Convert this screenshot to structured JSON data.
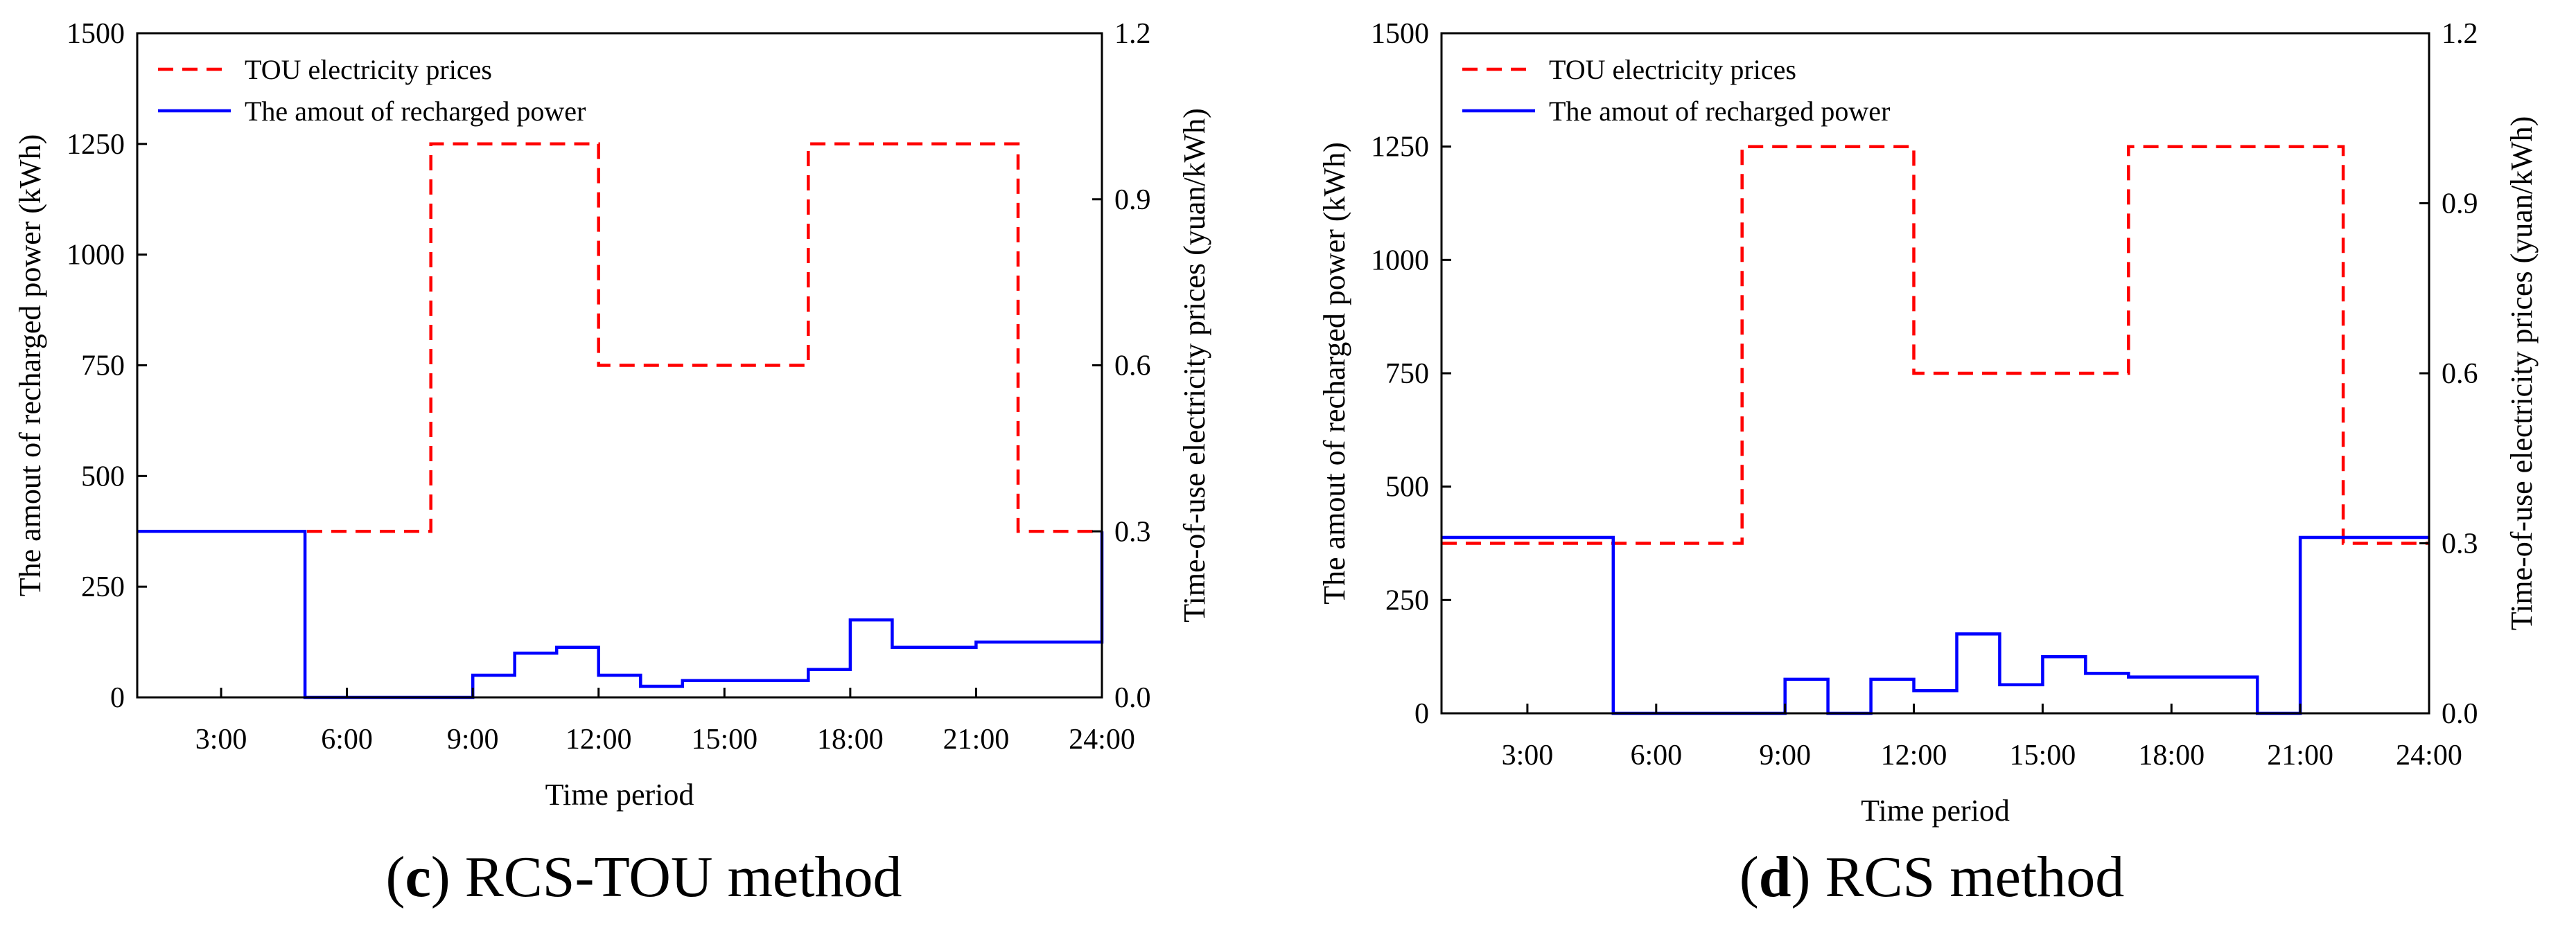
{
  "colors": {
    "price": "#ff0000",
    "power": "#0000ff",
    "axis": "#000000"
  },
  "captions": [
    {
      "letter": "c",
      "text": ") RCS-TOU method"
    },
    {
      "letter": "d",
      "text": ") RCS method"
    }
  ],
  "chart_data": [
    {
      "type": "line",
      "panel": "c",
      "xlabel": "Time period",
      "ylabel_left": "The amout of recharged power (kWh)",
      "ylabel_right": "Time-of-use electricity prices (yuan/kWh)",
      "xlim": [
        1,
        24
      ],
      "ylim_left": [
        0,
        1500
      ],
      "ylim_right": [
        0,
        1.2
      ],
      "x_ticks": [
        3,
        6,
        9,
        12,
        15,
        18,
        21,
        24
      ],
      "x_tick_labels": [
        "3:00",
        "6:00",
        "9:00",
        "12:00",
        "15:00",
        "18:00",
        "21:00",
        "24:00"
      ],
      "y_left_ticks": [
        "0",
        "250",
        "500",
        "750",
        "1000",
        "1250",
        "1500"
      ],
      "y_right_ticks": [
        "0.0",
        "0.3",
        "0.6",
        "0.9",
        "1.2"
      ],
      "legend_position": "top-left",
      "series": [
        {
          "name": "TOU electricity prices",
          "axis": "right",
          "style": "dashed-step",
          "color": "#ff0000",
          "x": [
            1,
            8,
            12,
            17,
            22,
            24
          ],
          "y": [
            0.3,
            1.0,
            0.6,
            1.0,
            0.3,
            0.3
          ]
        },
        {
          "name": "The amout of recharged power",
          "axis": "left",
          "style": "solid-step",
          "color": "#0000ff",
          "x": [
            1,
            5,
            9,
            10,
            11,
            12,
            13,
            14,
            16,
            17,
            18,
            19,
            21,
            24
          ],
          "y": [
            375,
            0,
            50,
            100,
            113,
            50,
            25,
            38,
            38,
            63,
            175,
            113,
            125,
            375
          ]
        }
      ]
    },
    {
      "type": "line",
      "panel": "d",
      "xlabel": "Time period",
      "ylabel_left": "The amout of recharged power (kWh)",
      "ylabel_right": "Time-of-use electricity prices (yuan/kWh)",
      "xlim": [
        1,
        24
      ],
      "ylim_left": [
        0,
        1500
      ],
      "ylim_right": [
        0,
        1.2
      ],
      "x_ticks": [
        3,
        6,
        9,
        12,
        15,
        18,
        21,
        24
      ],
      "x_tick_labels": [
        "3:00",
        "6:00",
        "9:00",
        "12:00",
        "15:00",
        "18:00",
        "21:00",
        "24:00"
      ],
      "y_left_ticks": [
        "0",
        "250",
        "500",
        "750",
        "1000",
        "1250",
        "1500"
      ],
      "y_right_ticks": [
        "0.0",
        "0.3",
        "0.6",
        "0.9",
        "1.2"
      ],
      "legend_position": "top-left",
      "series": [
        {
          "name": "TOU electricity prices",
          "axis": "right",
          "style": "dashed-step",
          "color": "#ff0000",
          "x": [
            1,
            8,
            12,
            17,
            22,
            24
          ],
          "y": [
            0.3,
            1.0,
            0.6,
            1.0,
            0.3,
            0.3
          ]
        },
        {
          "name": "The amout of recharged power",
          "axis": "left",
          "style": "solid-step",
          "color": "#0000ff",
          "x": [
            1,
            5,
            9,
            10,
            11,
            12,
            13,
            14,
            15,
            16,
            17,
            20,
            21,
            24
          ],
          "y": [
            388,
            0,
            75,
            0,
            75,
            50,
            175,
            63,
            125,
            88,
            80,
            0,
            388,
            388
          ]
        }
      ]
    }
  ]
}
